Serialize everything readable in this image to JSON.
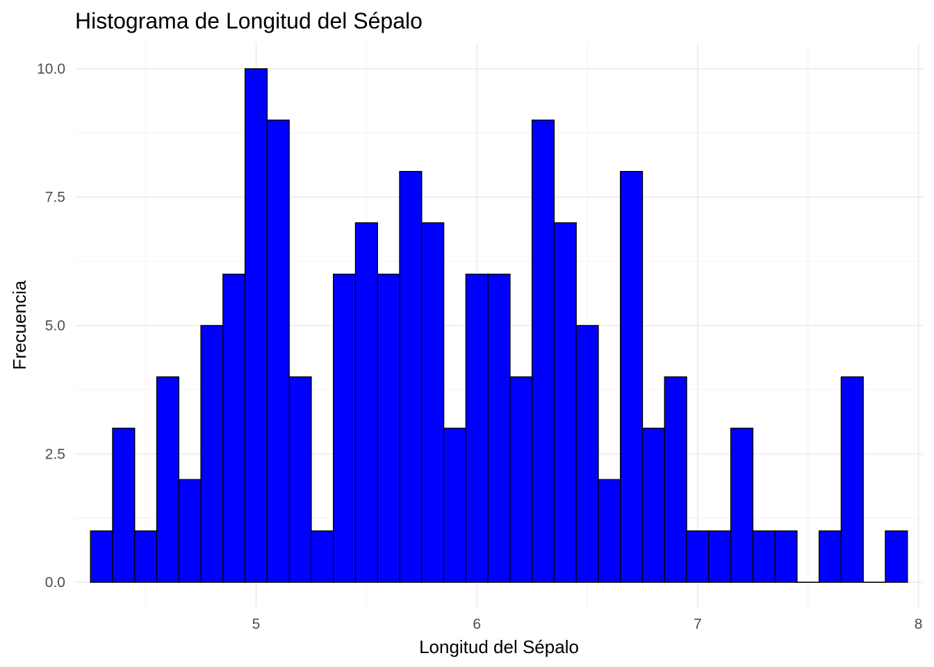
{
  "chart_data": {
    "type": "bar",
    "title": "Histograma de Longitud del Sépalo",
    "xlabel": "Longitud del Sépalo",
    "ylabel": "Frecuencia",
    "bin_width": 0.1,
    "bin_centers": [
      4.3,
      4.4,
      4.5,
      4.6,
      4.7,
      4.8,
      4.9,
      5.0,
      5.1,
      5.2,
      5.3,
      5.4,
      5.5,
      5.6,
      5.7,
      5.8,
      5.9,
      6.0,
      6.1,
      6.2,
      6.3,
      6.4,
      6.5,
      6.6,
      6.7,
      6.8,
      6.9,
      7.0,
      7.1,
      7.2,
      7.3,
      7.4,
      7.5,
      7.6,
      7.7,
      7.8,
      7.9
    ],
    "values": [
      1,
      3,
      1,
      4,
      2,
      5,
      6,
      10,
      9,
      4,
      1,
      6,
      7,
      6,
      8,
      7,
      3,
      6,
      6,
      4,
      9,
      7,
      5,
      2,
      8,
      3,
      4,
      1,
      1,
      3,
      1,
      1,
      0,
      1,
      4,
      0,
      1
    ],
    "xlim": [
      4.18,
      8.02
    ],
    "ylim": [
      -0.5,
      10.5
    ],
    "x_ticks": [
      5,
      6,
      7,
      8
    ],
    "x_tick_labels": [
      "5",
      "6",
      "7",
      "8"
    ],
    "y_ticks": [
      0,
      2.5,
      5,
      7.5,
      10
    ],
    "y_tick_labels": [
      "0.0",
      "2.5",
      "5.0",
      "7.5",
      "10.0"
    ],
    "grid": true,
    "bar_fill": "#0000ff",
    "bar_outline": "#000000",
    "background": "#ffffff"
  }
}
